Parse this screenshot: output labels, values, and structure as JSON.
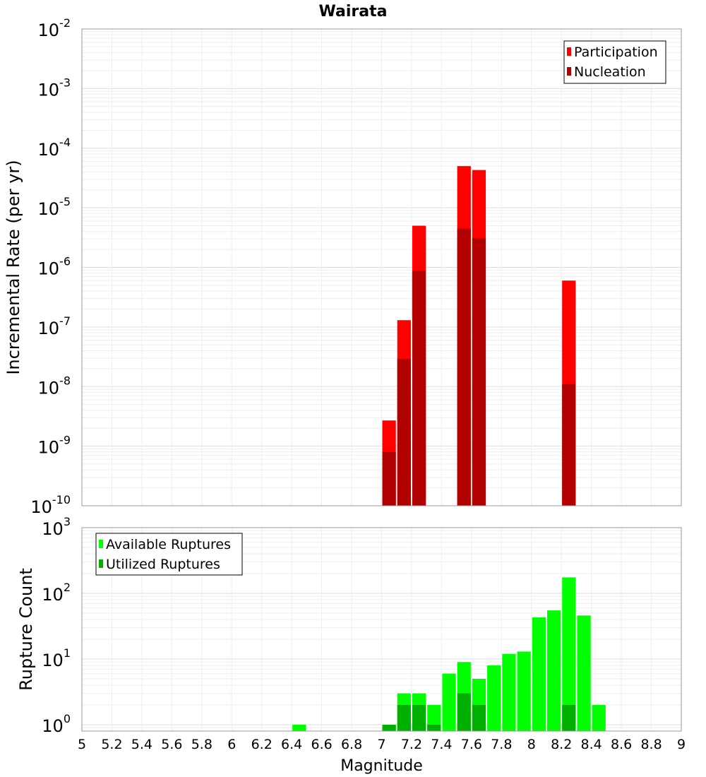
{
  "chart_data": [
    {
      "type": "bar",
      "title": "Wairata",
      "ylabel": "Incremental Rate (per yr)",
      "xlabel": "",
      "xlim": [
        5,
        9
      ],
      "y_scale": "log",
      "ylim": [
        1e-10,
        0.01
      ],
      "y_tick_labels": [
        {
          "base": "10",
          "exp": "-2"
        },
        {
          "base": "10",
          "exp": "-3"
        },
        {
          "base": "10",
          "exp": "-4"
        },
        {
          "base": "10",
          "exp": "-5"
        },
        {
          "base": "10",
          "exp": "-6"
        },
        {
          "base": "10",
          "exp": "-7"
        },
        {
          "base": "10",
          "exp": "-8"
        },
        {
          "base": "10",
          "exp": "-9"
        },
        {
          "base": "10",
          "exp": "-10"
        }
      ],
      "bin_width": 0.1,
      "grid": true,
      "legend_position": "top-right",
      "series": [
        {
          "name": "Participation",
          "color": "#ff0000",
          "points": [
            {
              "x": 7.05,
              "y": 2.7e-09
            },
            {
              "x": 7.15,
              "y": 1.3e-07
            },
            {
              "x": 7.25,
              "y": 5e-06
            },
            {
              "x": 7.55,
              "y": 5e-05
            },
            {
              "x": 7.65,
              "y": 4.3e-05
            },
            {
              "x": 8.25,
              "y": 6e-07
            }
          ]
        },
        {
          "name": "Nucleation",
          "color": "#b00000",
          "points": [
            {
              "x": 7.05,
              "y": 8e-10
            },
            {
              "x": 7.15,
              "y": 2.9e-08
            },
            {
              "x": 7.25,
              "y": 8.7e-07
            },
            {
              "x": 7.55,
              "y": 4.5e-06
            },
            {
              "x": 7.65,
              "y": 3.1e-06
            },
            {
              "x": 8.25,
              "y": 1.1e-08
            }
          ]
        }
      ]
    },
    {
      "type": "bar",
      "title": "",
      "ylabel": "Rupture Count",
      "xlabel": "Magnitude",
      "xlim": [
        5,
        9
      ],
      "y_scale": "log",
      "ylim": [
        0.8,
        1000
      ],
      "y_tick_labels": [
        {
          "base": "10",
          "exp": "3"
        },
        {
          "base": "10",
          "exp": "2"
        },
        {
          "base": "10",
          "exp": "1"
        },
        {
          "base": "10",
          "exp": "0"
        }
      ],
      "x_tick_labels": [
        "5",
        "5.2",
        "5.4",
        "5.6",
        "5.8",
        "6",
        "6.2",
        "6.4",
        "6.6",
        "6.8",
        "7",
        "7.2",
        "7.4",
        "7.6",
        "7.8",
        "8",
        "8.2",
        "8.4",
        "8.6",
        "8.8",
        "9"
      ],
      "bin_width": 0.1,
      "grid": true,
      "legend_position": "top-left",
      "series": [
        {
          "name": "Available Ruptures",
          "color": "#00ff00",
          "points": [
            {
              "x": 6.45,
              "y": 1
            },
            {
              "x": 7.05,
              "y": 1
            },
            {
              "x": 7.15,
              "y": 3
            },
            {
              "x": 7.25,
              "y": 3
            },
            {
              "x": 7.35,
              "y": 2
            },
            {
              "x": 7.45,
              "y": 6
            },
            {
              "x": 7.55,
              "y": 9
            },
            {
              "x": 7.65,
              "y": 5
            },
            {
              "x": 7.75,
              "y": 8
            },
            {
              "x": 7.85,
              "y": 12
            },
            {
              "x": 7.95,
              "y": 13
            },
            {
              "x": 8.05,
              "y": 43
            },
            {
              "x": 8.15,
              "y": 55
            },
            {
              "x": 8.25,
              "y": 175
            },
            {
              "x": 8.35,
              "y": 46
            },
            {
              "x": 8.45,
              "y": 2
            }
          ]
        },
        {
          "name": "Utilized Ruptures",
          "color": "#00b000",
          "points": [
            {
              "x": 7.05,
              "y": 1
            },
            {
              "x": 7.15,
              "y": 2
            },
            {
              "x": 7.25,
              "y": 2
            },
            {
              "x": 7.35,
              "y": 1
            },
            {
              "x": 7.55,
              "y": 3
            },
            {
              "x": 7.65,
              "y": 2
            },
            {
              "x": 8.25,
              "y": 2
            }
          ]
        }
      ]
    }
  ]
}
